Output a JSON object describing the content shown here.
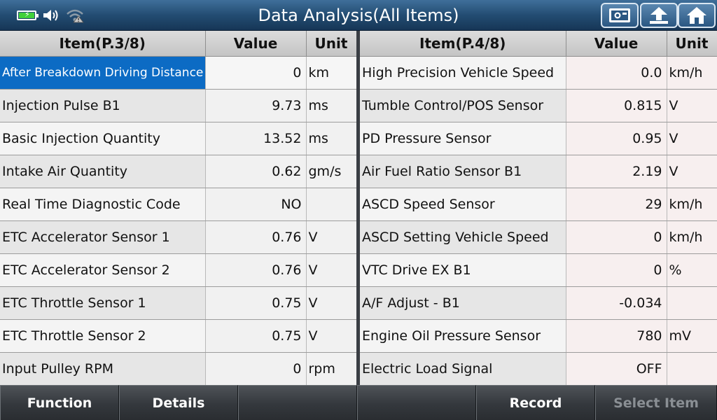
{
  "header": {
    "title": "Data Analysis(All Items)",
    "status_icons": [
      "battery-charging-icon",
      "speaker-icon",
      "wifi-signal-icon"
    ],
    "buttons": [
      "camera-icon",
      "back-arrow-icon",
      "home-icon"
    ]
  },
  "left_table": {
    "headers": {
      "item": "Item(P.3/8)",
      "value": "Value",
      "unit": "Unit"
    },
    "rows": [
      {
        "item": "After Breakdown Driving Distance",
        "value": "0",
        "unit": "km"
      },
      {
        "item": "Injection Pulse B1",
        "value": "9.73",
        "unit": "ms"
      },
      {
        "item": "Basic Injection Quantity",
        "value": "13.52",
        "unit": "ms"
      },
      {
        "item": "Intake Air Quantity",
        "value": "0.62",
        "unit": "gm/s"
      },
      {
        "item": "Real Time Diagnostic Code",
        "value": "NO",
        "unit": ""
      },
      {
        "item": "ETC Accelerator Sensor 1",
        "value": "0.76",
        "unit": "V"
      },
      {
        "item": "ETC Accelerator Sensor 2",
        "value": "0.76",
        "unit": "V"
      },
      {
        "item": "ETC Throttle Sensor 1",
        "value": "0.75",
        "unit": "V"
      },
      {
        "item": "ETC Throttle Sensor 2",
        "value": "0.75",
        "unit": "V"
      },
      {
        "item": "Input Pulley RPM",
        "value": "0",
        "unit": "rpm"
      }
    ]
  },
  "right_table": {
    "headers": {
      "item": "Item(P.4/8)",
      "value": "Value",
      "unit": "Unit"
    },
    "rows": [
      {
        "item": "High Precision Vehicle Speed",
        "value": "0.0",
        "unit": "km/h"
      },
      {
        "item": "Tumble Control/POS Sensor",
        "value": "0.815",
        "unit": "V"
      },
      {
        "item": "PD Pressure Sensor",
        "value": "0.95",
        "unit": "V"
      },
      {
        "item": "Air Fuel Ratio Sensor B1",
        "value": "2.19",
        "unit": "V"
      },
      {
        "item": "ASCD Speed Sensor",
        "value": "29",
        "unit": "km/h"
      },
      {
        "item": "ASCD Setting Vehicle Speed",
        "value": "0",
        "unit": "km/h"
      },
      {
        "item": "VTC Drive EX B1",
        "value": "0",
        "unit": "%"
      },
      {
        "item": "A/F Adjust - B1",
        "value": "-0.034",
        "unit": ""
      },
      {
        "item": "Engine Oil Pressure Sensor",
        "value": "780",
        "unit": "mV"
      },
      {
        "item": "Electric Load Signal",
        "value": "OFF",
        "unit": ""
      }
    ]
  },
  "toolbar": {
    "function_label": "Function",
    "details_label": "Details",
    "empty1_label": "",
    "empty2_label": "",
    "record_label": "Record",
    "select_item_label": "Select Item"
  },
  "colors": {
    "selection": "#0c6bc4",
    "battery": "#41d13a",
    "titlebar": "#234c72"
  }
}
